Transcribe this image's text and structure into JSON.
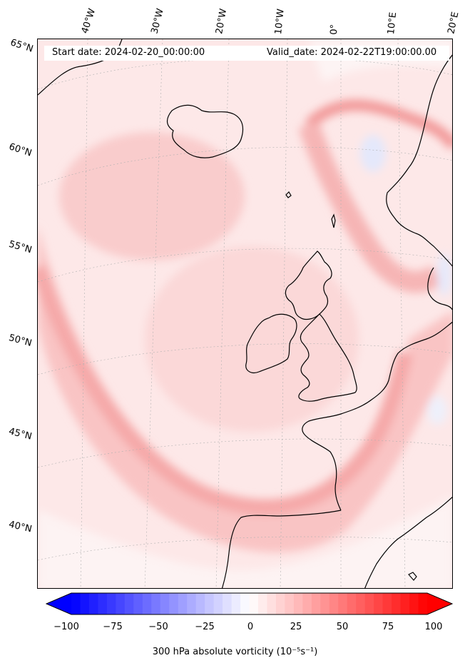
{
  "header": {
    "start_date": "Start date: 2024-02-20_00:00:00",
    "valid_date": "Valid_date: 2024-02-22T19:00:00.00"
  },
  "longitude_labels": [
    "40°W",
    "30°W",
    "20°W",
    "10°W",
    "0°",
    "10°E",
    "20°E"
  ],
  "latitude_labels": [
    "65°N",
    "60°N",
    "55°N",
    "50°N",
    "45°N",
    "40°N"
  ],
  "colorbar": {
    "ticks": [
      "−100",
      "−75",
      "−50",
      "−25",
      "0",
      "25",
      "50",
      "75",
      "100"
    ],
    "label": "300 hPa absolute vorticity (10⁻⁵s⁻¹)",
    "min": -100,
    "max": 100,
    "colors": {
      "negative": "#0000ff",
      "zero": "#ffffff",
      "positive": "#ff0000"
    }
  }
}
